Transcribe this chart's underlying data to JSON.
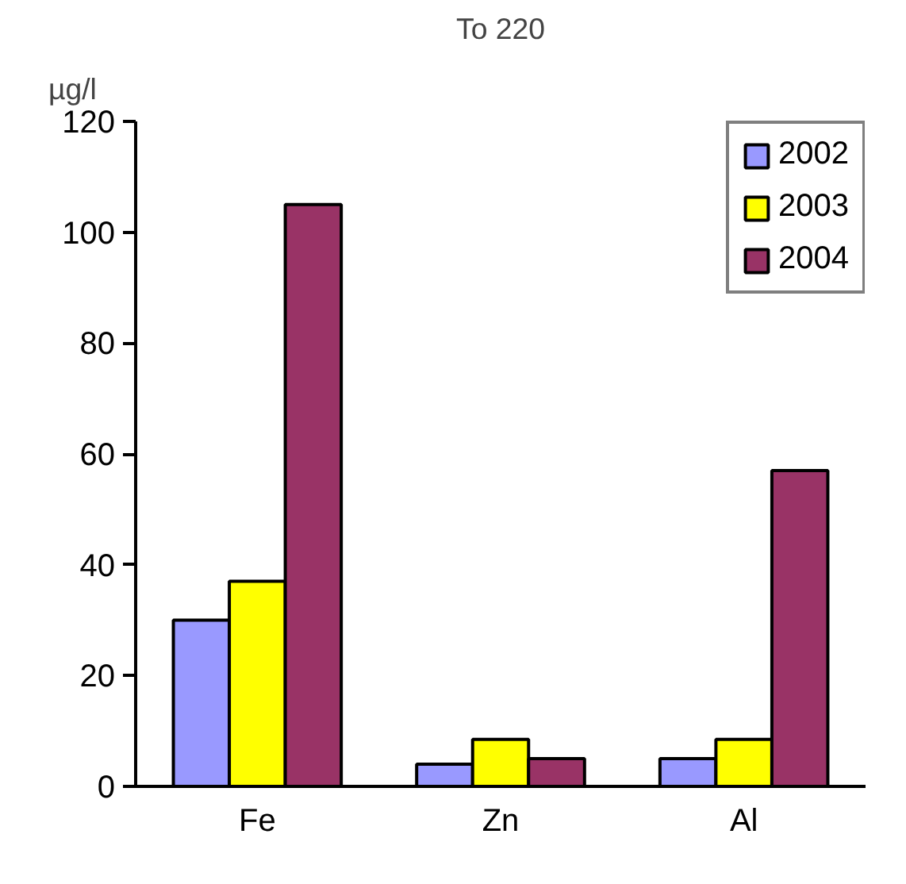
{
  "chart_data": {
    "type": "bar",
    "title": "To 220",
    "ylabel": "µg/l",
    "categories": [
      "Fe",
      "Zn",
      "Al"
    ],
    "series": [
      {
        "name": "2002",
        "color": "#9999ff",
        "values": [
          30,
          4,
          5
        ]
      },
      {
        "name": "2003",
        "color": "#ffff00",
        "values": [
          37,
          8.5,
          8.5
        ]
      },
      {
        "name": "2004",
        "color": "#993366",
        "values": [
          105,
          5,
          57
        ]
      }
    ],
    "ylim": [
      0,
      120
    ],
    "yticks": [
      0,
      20,
      40,
      60,
      80,
      100,
      120
    ],
    "grid": false,
    "legend": "top right"
  }
}
